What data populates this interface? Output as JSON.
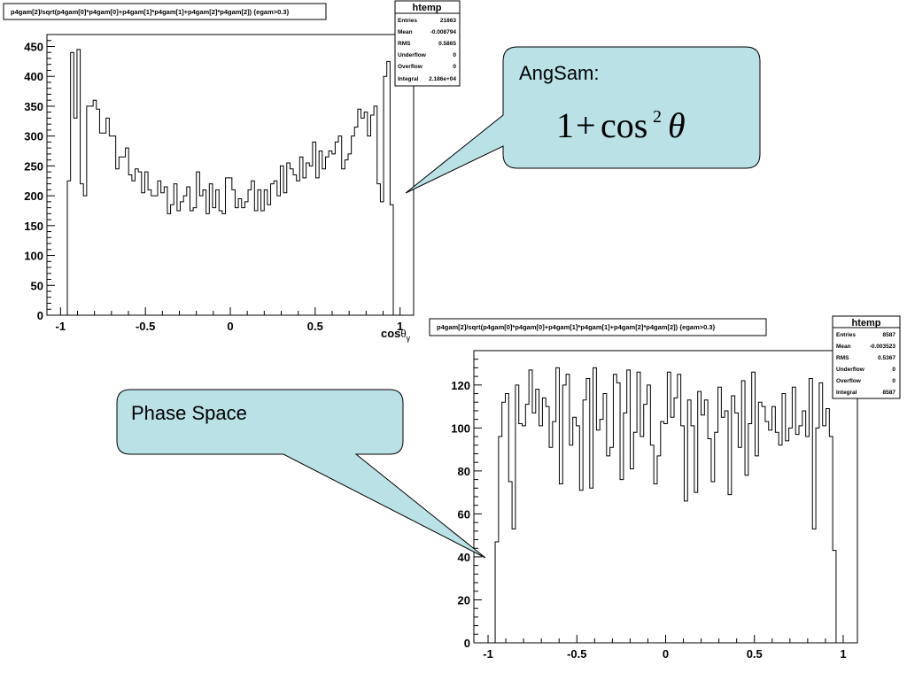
{
  "chart_data": [
    {
      "type": "histogram",
      "title": "p4gam[2]/sqrt(p4gam[0]*p4gam[0]+p4gam[1]*p4gam[1]+p4gam[2]*p4gam[2]) {egam>0.3}",
      "xlabel_main": "cos",
      "xlabel_greek": "θ",
      "xlabel_sub": "γ",
      "ylabel": "",
      "xlim": [
        -1.08,
        1.08
      ],
      "ylim": [
        0,
        470
      ],
      "xticks": [
        -1,
        -0.5,
        0,
        0.5,
        1
      ],
      "xtick_labels": [
        "-1",
        "-0.5",
        "0",
        "0.5",
        "1"
      ],
      "yticks": [
        0,
        50,
        100,
        150,
        200,
        250,
        300,
        350,
        400,
        450
      ],
      "ytick_labels": [
        "0",
        "50",
        "100",
        "150",
        "200",
        "250",
        "300",
        "350",
        "400",
        "450"
      ],
      "bin_edges_range": [
        -0.96,
        0.96
      ],
      "values": [
        225,
        440,
        330,
        445,
        220,
        200,
        350,
        350,
        360,
        345,
        305,
        305,
        330,
        300,
        300,
        245,
        265,
        265,
        280,
        235,
        225,
        245,
        240,
        205,
        240,
        210,
        200,
        200,
        225,
        205,
        215,
        170,
        185,
        220,
        175,
        190,
        200,
        215,
        175,
        180,
        240,
        200,
        210,
        170,
        220,
        180,
        210,
        175,
        170,
        230,
        230,
        210,
        180,
        195,
        180,
        190,
        210,
        225,
        175,
        210,
        175,
        210,
        185,
        220,
        225,
        200,
        250,
        205,
        255,
        245,
        235,
        225,
        265,
        230,
        255,
        250,
        290,
        230,
        275,
        245,
        265,
        275,
        270,
        290,
        300,
        245,
        260,
        270,
        300,
        315,
        345,
        330,
        340,
        300,
        335,
        350,
        220,
        190,
        400,
        425,
        185
      ],
      "stats": {
        "name": "htemp",
        "rows": [
          [
            "Entries",
            "21863"
          ],
          [
            "Mean",
            "-0.008794"
          ],
          [
            "RMS",
            "0.5865"
          ],
          [
            "Underflow",
            "0"
          ],
          [
            "Overflow",
            "0"
          ],
          [
            "Integral",
            "2.186e+04"
          ]
        ]
      }
    },
    {
      "type": "histogram",
      "title": "p4gam[2]/sqrt(p4gam[0]*p4gam[0]+p4gam[1]*p4gam[1]+p4gam[2]*p4gam[2]) {egam>0.3}",
      "xlabel": "",
      "ylabel": "",
      "xlim": [
        -1.08,
        1.08
      ],
      "ylim": [
        0,
        136
      ],
      "xticks": [
        -1,
        -0.5,
        0,
        0.5,
        1
      ],
      "xtick_labels": [
        "-1",
        "-0.5",
        "0",
        "0.5",
        "1"
      ],
      "yticks": [
        0,
        20,
        40,
        60,
        80,
        100,
        120
      ],
      "ytick_labels": [
        "0",
        "20",
        "40",
        "60",
        "80",
        "100",
        "120"
      ],
      "bin_edges_range": [
        -0.96,
        0.96
      ],
      "values": [
        47,
        96,
        112,
        116,
        75,
        53,
        120,
        102,
        101,
        111,
        127,
        107,
        118,
        101,
        114,
        110,
        91,
        103,
        128,
        74,
        120,
        125,
        92,
        105,
        101,
        71,
        113,
        123,
        72,
        128,
        99,
        104,
        116,
        87,
        91,
        125,
        121,
        76,
        107,
        127,
        81,
        98,
        126,
        96,
        111,
        120,
        92,
        74,
        87,
        103,
        102,
        126,
        105,
        114,
        125,
        101,
        66,
        113,
        101,
        70,
        117,
        106,
        113,
        95,
        75,
        98,
        119,
        105,
        108,
        69,
        115,
        107,
        91,
        122,
        78,
        102,
        126,
        87,
        112,
        110,
        103,
        99,
        110,
        98,
        92,
        116,
        94,
        100,
        119,
        97,
        101,
        108,
        96,
        123,
        53,
        100,
        121,
        101,
        109,
        96,
        43
      ]
    }
  ],
  "stats_box_1": {
    "title": "htemp",
    "entries_label": "Entries",
    "entries_value": "21863",
    "mean_label": "Mean",
    "mean_value": "-0.008794",
    "rms_label": "RMS",
    "rms_value": "0.5865",
    "underflow_label": "Underflow",
    "underflow_value": "0",
    "overflow_label": "Overflow",
    "overflow_value": "0",
    "integral_label": "Integral",
    "integral_value": "2.186e+04"
  },
  "stats_box_2": {
    "title": "htemp",
    "entries_label": "Entries",
    "entries_value": "8587",
    "mean_label": "Mean",
    "mean_value": "-0.003523",
    "rms_label": "RMS",
    "rms_value": "0.5367",
    "underflow_label": "Underflow",
    "underflow_value": "0",
    "overflow_label": "Overflow",
    "overflow_value": "0",
    "integral_label": "Integral",
    "integral_value": "8587"
  },
  "callout_angsam": {
    "label": "AngSam:",
    "formula_one": "1",
    "formula_plus": "+",
    "formula_cos": "cos",
    "formula_exp": "2",
    "formula_theta": "θ",
    "fill_color": "#b9e1e6"
  },
  "callout_phase": {
    "label": "Phase Space",
    "fill_color": "#b9e1e6"
  },
  "colors": {
    "line": "#000000",
    "background": "#ffffff"
  }
}
